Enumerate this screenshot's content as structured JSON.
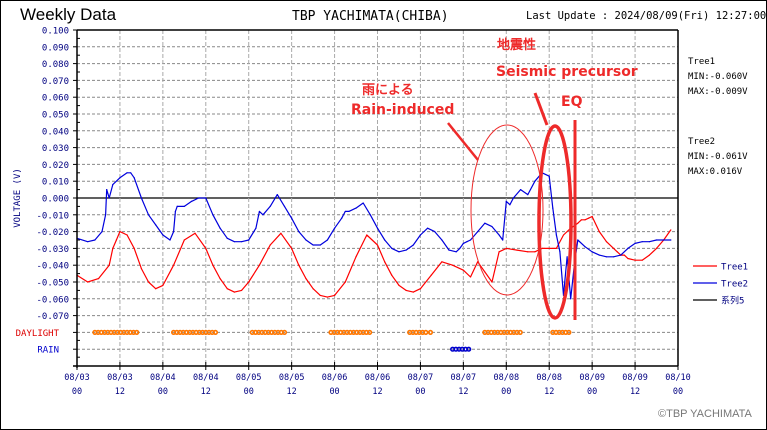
{
  "header": {
    "title": "Weekly Data",
    "station": "TBP YACHIMATA(CHIBA)",
    "last_update": "Last Update : 2024/08/09(Fri) 12:27:00"
  },
  "stats": {
    "tree1": {
      "name": "Tree1",
      "min": "MIN:-0.060V",
      "max": "MAX:-0.009V"
    },
    "tree2": {
      "name": "Tree2",
      "min": "MIN:-0.061V",
      "max": "MAX:0.016V"
    }
  },
  "annotations": {
    "seismic_jp": "地震性",
    "seismic_en": "Seismic precursor",
    "rain_jp": "雨による",
    "rain_en": "Rain-induced",
    "eq": "EQ"
  },
  "footer": {
    "copyright": "©TBP YACHIMATA"
  },
  "colors": {
    "tree1": "#ff0000",
    "tree2": "#0000dd",
    "series5": "#000000",
    "daylight": "#ff7700",
    "rain": "#0000cc",
    "annotation": "#ee2a2a",
    "axis_label": "#000080"
  },
  "chart_data": {
    "type": "line",
    "title": "Weekly Data",
    "xlabel": "",
    "ylabel": "VOLTAGE (V)",
    "ylim": [
      -0.07,
      0.1
    ],
    "xlim_hours": [
      0,
      168
    ],
    "grid": true,
    "legend_position": "right",
    "y_ticks": [
      "0.100",
      "0.090",
      "0.080",
      "0.070",
      "0.060",
      "0.050",
      "0.040",
      "0.030",
      "0.020",
      "0.010",
      "0.000",
      "-0.010",
      "-0.020",
      "-0.030",
      "-0.040",
      "-0.050",
      "-0.060",
      "-0.070"
    ],
    "y_tick_values": [
      0.1,
      0.09,
      0.08,
      0.07,
      0.06,
      0.05,
      0.04,
      0.03,
      0.02,
      0.01,
      0,
      -0.01,
      -0.02,
      -0.03,
      -0.04,
      -0.05,
      -0.06,
      -0.07
    ],
    "extra_rows": [
      "DAYLIGHT",
      "RAIN"
    ],
    "x_ticks": [
      {
        "date": "08/03",
        "hour": "00"
      },
      {
        "date": "08/03",
        "hour": "12"
      },
      {
        "date": "08/04",
        "hour": "00"
      },
      {
        "date": "08/04",
        "hour": "12"
      },
      {
        "date": "08/05",
        "hour": "00"
      },
      {
        "date": "08/05",
        "hour": "12"
      },
      {
        "date": "08/06",
        "hour": "00"
      },
      {
        "date": "08/06",
        "hour": "12"
      },
      {
        "date": "08/07",
        "hour": "00"
      },
      {
        "date": "08/07",
        "hour": "12"
      },
      {
        "date": "08/08",
        "hour": "00"
      },
      {
        "date": "08/08",
        "hour": "12"
      },
      {
        "date": "08/09",
        "hour": "00"
      },
      {
        "date": "08/09",
        "hour": "12"
      },
      {
        "date": "08/10",
        "hour": "00"
      }
    ],
    "legend": [
      "Tree1",
      "Tree2",
      "系列5"
    ],
    "series": [
      {
        "name": "Tree1",
        "x_hours": [
          0,
          3,
          6,
          9,
          10,
          11,
          12,
          14,
          16,
          18,
          20,
          22,
          24,
          27,
          30,
          33,
          36,
          38,
          40,
          42,
          44,
          46,
          48,
          51,
          54,
          57,
          60,
          62,
          64,
          66,
          68,
          70,
          72,
          75,
          78,
          81,
          84,
          86,
          88,
          90,
          92,
          94,
          96,
          99,
          102,
          105,
          108,
          110,
          112,
          114,
          116,
          118,
          120,
          123,
          126,
          128,
          130,
          132,
          134,
          136,
          138,
          140,
          141,
          142,
          143,
          144,
          146,
          148,
          150,
          151,
          152,
          153,
          154,
          156,
          158,
          160,
          162,
          164,
          166
        ],
        "values": [
          -0.046,
          -0.05,
          -0.048,
          -0.04,
          -0.03,
          -0.025,
          -0.02,
          -0.022,
          -0.03,
          -0.042,
          -0.05,
          -0.054,
          -0.052,
          -0.04,
          -0.025,
          -0.021,
          -0.03,
          -0.04,
          -0.048,
          -0.054,
          -0.056,
          -0.055,
          -0.05,
          -0.04,
          -0.028,
          -0.021,
          -0.03,
          -0.04,
          -0.048,
          -0.054,
          -0.058,
          -0.059,
          -0.058,
          -0.05,
          -0.035,
          -0.022,
          -0.028,
          -0.038,
          -0.046,
          -0.052,
          -0.055,
          -0.056,
          -0.054,
          -0.046,
          -0.038,
          -0.04,
          -0.043,
          -0.047,
          -0.038,
          -0.044,
          -0.05,
          -0.032,
          -0.03,
          -0.031,
          -0.032,
          -0.032,
          -0.03,
          -0.03,
          -0.03,
          -0.022,
          -0.018,
          -0.015,
          -0.013,
          -0.013,
          -0.012,
          -0.011,
          -0.02,
          -0.026,
          -0.03,
          -0.032,
          -0.034,
          -0.034,
          -0.036,
          -0.037,
          -0.037,
          -0.034,
          -0.03,
          -0.025,
          -0.019
        ]
      },
      {
        "name": "Tree2",
        "x_hours": [
          0,
          3,
          5,
          7,
          8,
          8.3,
          9,
          10,
          12,
          14,
          15,
          16,
          18,
          20,
          22,
          24,
          26,
          27,
          27.5,
          28,
          30,
          32,
          34,
          36,
          38,
          40,
          42,
          44,
          46,
          48,
          50,
          51,
          52,
          54,
          56,
          58,
          60,
          62,
          64,
          66,
          68,
          70,
          72,
          74,
          75,
          76,
          78,
          80,
          82,
          84,
          86,
          88,
          90,
          92,
          94,
          96,
          98,
          100,
          102,
          104,
          106,
          107,
          108,
          109,
          110,
          112,
          114,
          116,
          118,
          119,
          120,
          121,
          122,
          124,
          126,
          128,
          130,
          132,
          133,
          134,
          135,
          136,
          137,
          138,
          139,
          140,
          142,
          144,
          146,
          148,
          150,
          152,
          154,
          156,
          158,
          160,
          162,
          164,
          166
        ],
        "values": [
          -0.024,
          -0.026,
          -0.025,
          -0.02,
          -0.01,
          0.005,
          0,
          0.008,
          0.012,
          0.015,
          0.015,
          0.012,
          0,
          -0.01,
          -0.016,
          -0.022,
          -0.025,
          -0.02,
          -0.008,
          -0.005,
          -0.005,
          -0.002,
          0,
          0,
          -0.01,
          -0.018,
          -0.024,
          -0.026,
          -0.026,
          -0.025,
          -0.018,
          -0.008,
          -0.01,
          -0.005,
          0.002,
          -0.005,
          -0.012,
          -0.02,
          -0.025,
          -0.028,
          -0.028,
          -0.025,
          -0.018,
          -0.012,
          -0.008,
          -0.008,
          -0.006,
          -0.003,
          -0.01,
          -0.018,
          -0.025,
          -0.03,
          -0.032,
          -0.031,
          -0.028,
          -0.022,
          -0.018,
          -0.02,
          -0.025,
          -0.031,
          -0.032,
          -0.03,
          -0.027,
          -0.026,
          -0.025,
          -0.02,
          -0.015,
          -0.017,
          -0.022,
          -0.025,
          -0.002,
          -0.004,
          0,
          0.005,
          0.002,
          0.01,
          0.015,
          0.013,
          -0.006,
          -0.022,
          -0.032,
          -0.058,
          -0.035,
          -0.06,
          -0.04,
          -0.025,
          -0.029,
          -0.032,
          -0.034,
          -0.035,
          -0.035,
          -0.034,
          -0.03,
          -0.027,
          -0.026,
          -0.026,
          -0.025,
          -0.025,
          -0.025
        ]
      }
    ],
    "daylight_ranges_hours": [
      [
        5,
        17
      ],
      [
        27,
        39
      ],
      [
        49,
        58
      ],
      [
        71,
        82
      ],
      [
        93,
        98
      ],
      [
        98.8,
        99.5
      ],
      [
        114,
        124
      ],
      [
        133,
        138
      ]
    ],
    "rain_ranges_hours": [
      [
        105,
        109.5
      ]
    ]
  }
}
